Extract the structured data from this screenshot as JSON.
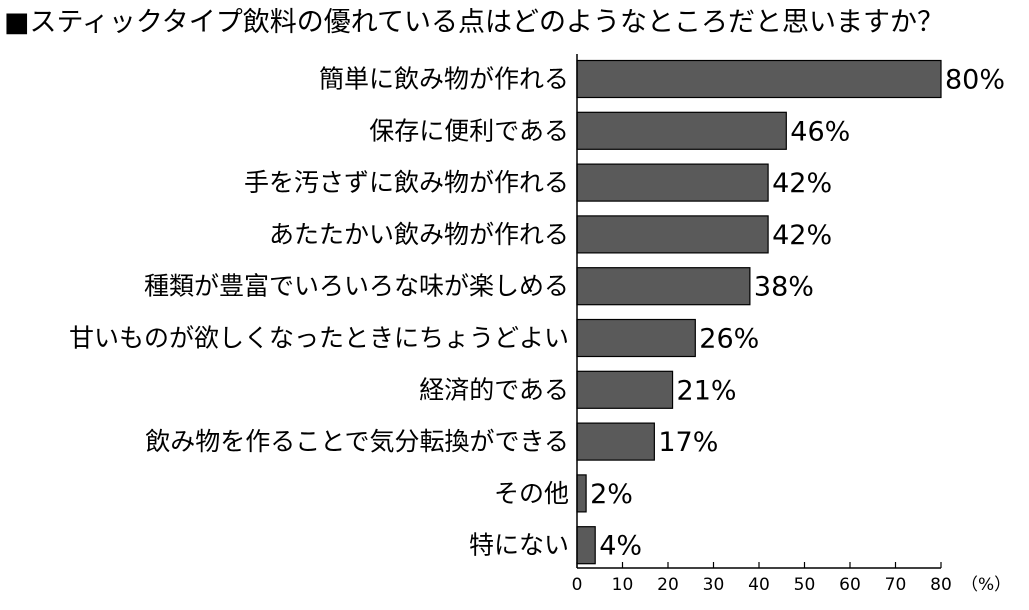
{
  "chart_data": {
    "type": "bar",
    "orientation": "horizontal",
    "title": "■スティックタイプ飲料の優れている点はどのようなところだと思いますか？",
    "categories": [
      "簡単に飲み物が作れる",
      "保存に便利である",
      "手を汚さずに飲み物が作れる",
      "あたたかい飲み物が作れる",
      "種類が豊富でいろいろな味が楽しめる",
      "甘いものが欲しくなったときにちょうどよい",
      "経済的である",
      "飲み物を作ることで気分転換ができる",
      "その他",
      "特にない"
    ],
    "values": [
      80,
      46,
      42,
      42,
      38,
      26,
      21,
      17,
      2,
      4
    ],
    "value_labels": [
      "80%",
      "46%",
      "42%",
      "42%",
      "38%",
      "26%",
      "21%",
      "17%",
      "2%",
      "4%"
    ],
    "xlim": [
      0,
      80
    ],
    "xticks": [
      0,
      10,
      20,
      30,
      40,
      50,
      60,
      70,
      80
    ],
    "xunit": "（%）",
    "bar_color": "#5a5a5a",
    "grid": false
  }
}
